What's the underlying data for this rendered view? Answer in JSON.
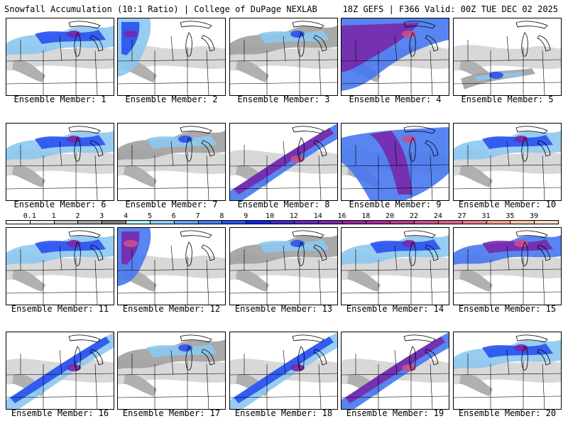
{
  "header": {
    "left_title": "Snowfall Accumulation (10:1 Ratio) | College of DuPage NEXLAB",
    "right_title": "18Z GEFS | F366 Valid: 00Z TUE DEC 02 2025"
  },
  "legend": {
    "labels": [
      "0.1",
      "1",
      "2",
      "3",
      "4",
      "5",
      "6",
      "7",
      "8",
      "9",
      "10",
      "12",
      "14",
      "16",
      "18",
      "20",
      "22",
      "24",
      "27",
      "31",
      "35",
      "39"
    ],
    "colors": [
      "#ffffff",
      "#e6e6e6",
      "#c4c4c4",
      "#a0a0a0",
      "#7a7a7a",
      "#b4f0f0",
      "#8cc8f0",
      "#64a0f0",
      "#4678f0",
      "#2850f0",
      "#0a28e6",
      "#3c28d2",
      "#6428be",
      "#7828aa",
      "#962896",
      "#aa2896",
      "#b43c8c",
      "#c8508c",
      "#d2648c",
      "#e6788c",
      "#f0a08c",
      "#f5c3a5",
      "#fadcc3"
    ]
  },
  "panels": [
    {
      "label": "Ensemble Member: 1",
      "intensity": "moderate",
      "band": "north"
    },
    {
      "label": "Ensemble Member: 2",
      "intensity": "moderate",
      "band": "west"
    },
    {
      "label": "Ensemble Member: 3",
      "intensity": "light",
      "band": "north"
    },
    {
      "label": "Ensemble Member: 4",
      "intensity": "heavy",
      "band": "northwest"
    },
    {
      "label": "Ensemble Member: 5",
      "intensity": "light",
      "band": "south"
    },
    {
      "label": "Ensemble Member: 6",
      "intensity": "moderate",
      "band": "north"
    },
    {
      "label": "Ensemble Member: 7",
      "intensity": "light",
      "band": "north"
    },
    {
      "label": "Ensemble Member: 8",
      "intensity": "heavy",
      "band": "diagonal"
    },
    {
      "label": "Ensemble Member: 9",
      "intensity": "heavy",
      "band": "central"
    },
    {
      "label": "Ensemble Member: 10",
      "intensity": "moderate",
      "band": "north"
    },
    {
      "label": "Ensemble Member: 11",
      "intensity": "moderate",
      "band": "north"
    },
    {
      "label": "Ensemble Member: 12",
      "intensity": "heavy",
      "band": "west"
    },
    {
      "label": "Ensemble Member: 13",
      "intensity": "light",
      "band": "north"
    },
    {
      "label": "Ensemble Member: 14",
      "intensity": "moderate",
      "band": "north"
    },
    {
      "label": "Ensemble Member: 15",
      "intensity": "heavy",
      "band": "north"
    },
    {
      "label": "Ensemble Member: 16",
      "intensity": "moderate",
      "band": "diagonal"
    },
    {
      "label": "Ensemble Member: 17",
      "intensity": "light",
      "band": "north"
    },
    {
      "label": "Ensemble Member: 18",
      "intensity": "moderate",
      "band": "diagonal"
    },
    {
      "label": "Ensemble Member: 19",
      "intensity": "heavy",
      "band": "diagonal"
    },
    {
      "label": "Ensemble Member: 20",
      "intensity": "moderate",
      "band": "north"
    }
  ]
}
